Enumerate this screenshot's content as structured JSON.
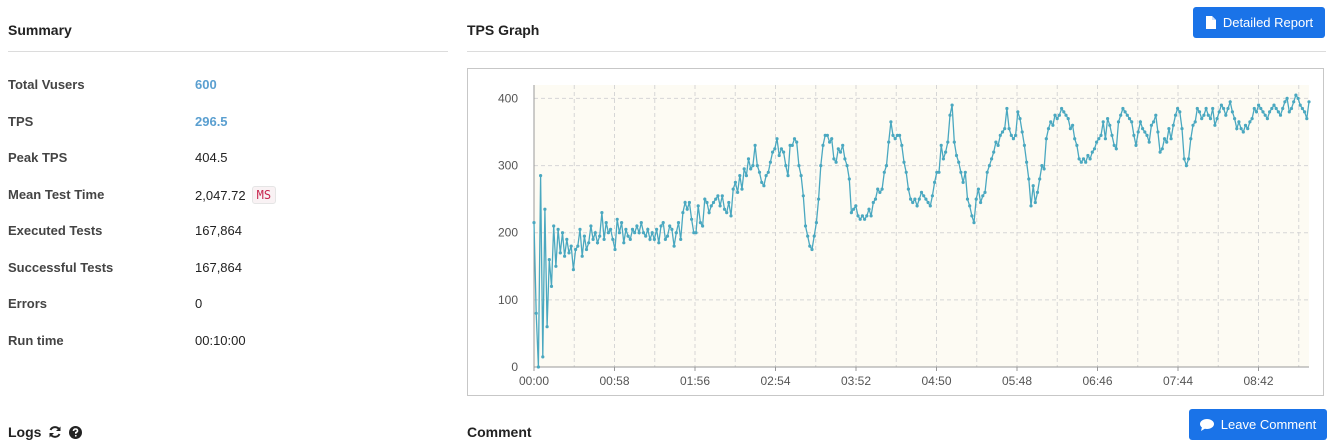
{
  "summary": {
    "title": "Summary",
    "rows": [
      {
        "label": "Total Vusers",
        "value": "600"
      },
      {
        "label": "TPS",
        "value": "296.5"
      },
      {
        "label": "Peak TPS",
        "value": "404.5"
      },
      {
        "label": "Mean Test Time",
        "value": "2,047.72",
        "unit": "MS"
      },
      {
        "label": "Executed Tests",
        "value": "167,864"
      },
      {
        "label": "Successful Tests",
        "value": "167,864"
      },
      {
        "label": "Errors",
        "value": "0"
      },
      {
        "label": "Run time",
        "value": "00:10:00"
      }
    ]
  },
  "tps_graph": {
    "title": "TPS Graph",
    "detailed_report_label": "Detailed Report"
  },
  "logs": {
    "title": "Logs",
    "refresh_icon": "refresh-icon",
    "help_icon": "question-circle-icon"
  },
  "comment": {
    "title": "Comment",
    "leave_comment_label": "Leave Comment"
  },
  "colors": {
    "accent": "#1a73e8",
    "link_value": "#5a9fd0",
    "line": "#4aa8c0",
    "plot_bg": "#fdfbf3"
  },
  "chart_data": {
    "type": "line",
    "title": "",
    "xlabel": "",
    "ylabel": "",
    "ylim": [
      0,
      420
    ],
    "yticks": [
      0,
      100,
      200,
      300,
      400
    ],
    "xticks": [
      "00:00",
      "00:58",
      "01:56",
      "02:54",
      "03:52",
      "04:50",
      "05:48",
      "06:46",
      "07:44",
      "08:42"
    ],
    "grid": true,
    "series": [
      {
        "values": [
          215,
          80,
          0,
          285,
          15,
          235,
          60,
          160,
          120,
          210,
          150,
          205,
          170,
          200,
          165,
          190,
          170,
          180,
          145,
          175,
          180,
          205,
          165,
          195,
          175,
          185,
          210,
          190,
          200,
          185,
          195,
          230,
          190,
          215,
          200,
          205,
          190,
          175,
          220,
          200,
          215,
          185,
          205,
          195,
          190,
          205,
          200,
          210,
          200,
          215,
          200,
          195,
          205,
          190,
          200,
          190,
          205,
          185,
          210,
          215,
          190,
          195,
          210,
          205,
          180,
          200,
          215,
          190,
          230,
          245,
          235,
          245,
          220,
          200,
          200,
          240,
          215,
          210,
          250,
          245,
          230,
          240,
          245,
          250,
          255,
          240,
          255,
          235,
          230,
          245,
          225,
          265,
          275,
          260,
          285,
          265,
          295,
          285,
          310,
          295,
          300,
          330,
          300,
          290,
          275,
          270,
          285,
          290,
          305,
          320,
          325,
          340,
          315,
          325,
          320,
          300,
          285,
          330,
          330,
          340,
          335,
          300,
          285,
          255,
          210,
          195,
          180,
          175,
          195,
          215,
          250,
          300,
          330,
          345,
          345,
          335,
          340,
          310,
          305,
          325,
          320,
          330,
          310,
          300,
          280,
          230,
          235,
          240,
          225,
          220,
          225,
          220,
          225,
          235,
          225,
          245,
          250,
          265,
          260,
          265,
          290,
          300,
          335,
          365,
          345,
          340,
          345,
          345,
          330,
          305,
          290,
          265,
          250,
          245,
          250,
          240,
          250,
          260,
          255,
          250,
          245,
          240,
          255,
          275,
          290,
          290,
          330,
          310,
          320,
          335,
          375,
          390,
          335,
          315,
          305,
          290,
          275,
          290,
          250,
          240,
          225,
          215,
          250,
          265,
          245,
          255,
          260,
          290,
          300,
          310,
          320,
          335,
          330,
          345,
          350,
          355,
          385,
          355,
          345,
          340,
          345,
          380,
          370,
          350,
          330,
          305,
          280,
          240,
          270,
          245,
          260,
          280,
          300,
          295,
          340,
          355,
          365,
          360,
          375,
          370,
          375,
          385,
          380,
          375,
          370,
          355,
          360,
          340,
          330,
          310,
          305,
          310,
          305,
          315,
          310,
          320,
          325,
          335,
          340,
          345,
          365,
          340,
          370,
          360,
          345,
          330,
          325,
          365,
          375,
          385,
          380,
          375,
          370,
          365,
          345,
          330,
          350,
          365,
          355,
          350,
          345,
          335,
          360,
          365,
          375,
          350,
          320,
          325,
          340,
          335,
          355,
          340,
          360,
          375,
          385,
          380,
          355,
          310,
          300,
          310,
          340,
          360,
          365,
          385,
          380,
          370,
          375,
          385,
          375,
          370,
          385,
          360,
          370,
          380,
          390,
          385,
          375,
          385,
          395,
          380,
          370,
          355,
          365,
          355,
          350,
          360,
          355,
          365,
          370,
          385,
          380,
          390,
          385,
          380,
          375,
          370,
          380,
          385,
          390,
          385,
          380,
          375,
          385,
          395,
          400,
          380,
          385,
          395,
          405,
          400,
          390,
          385,
          380,
          370,
          395
        ]
      }
    ]
  }
}
